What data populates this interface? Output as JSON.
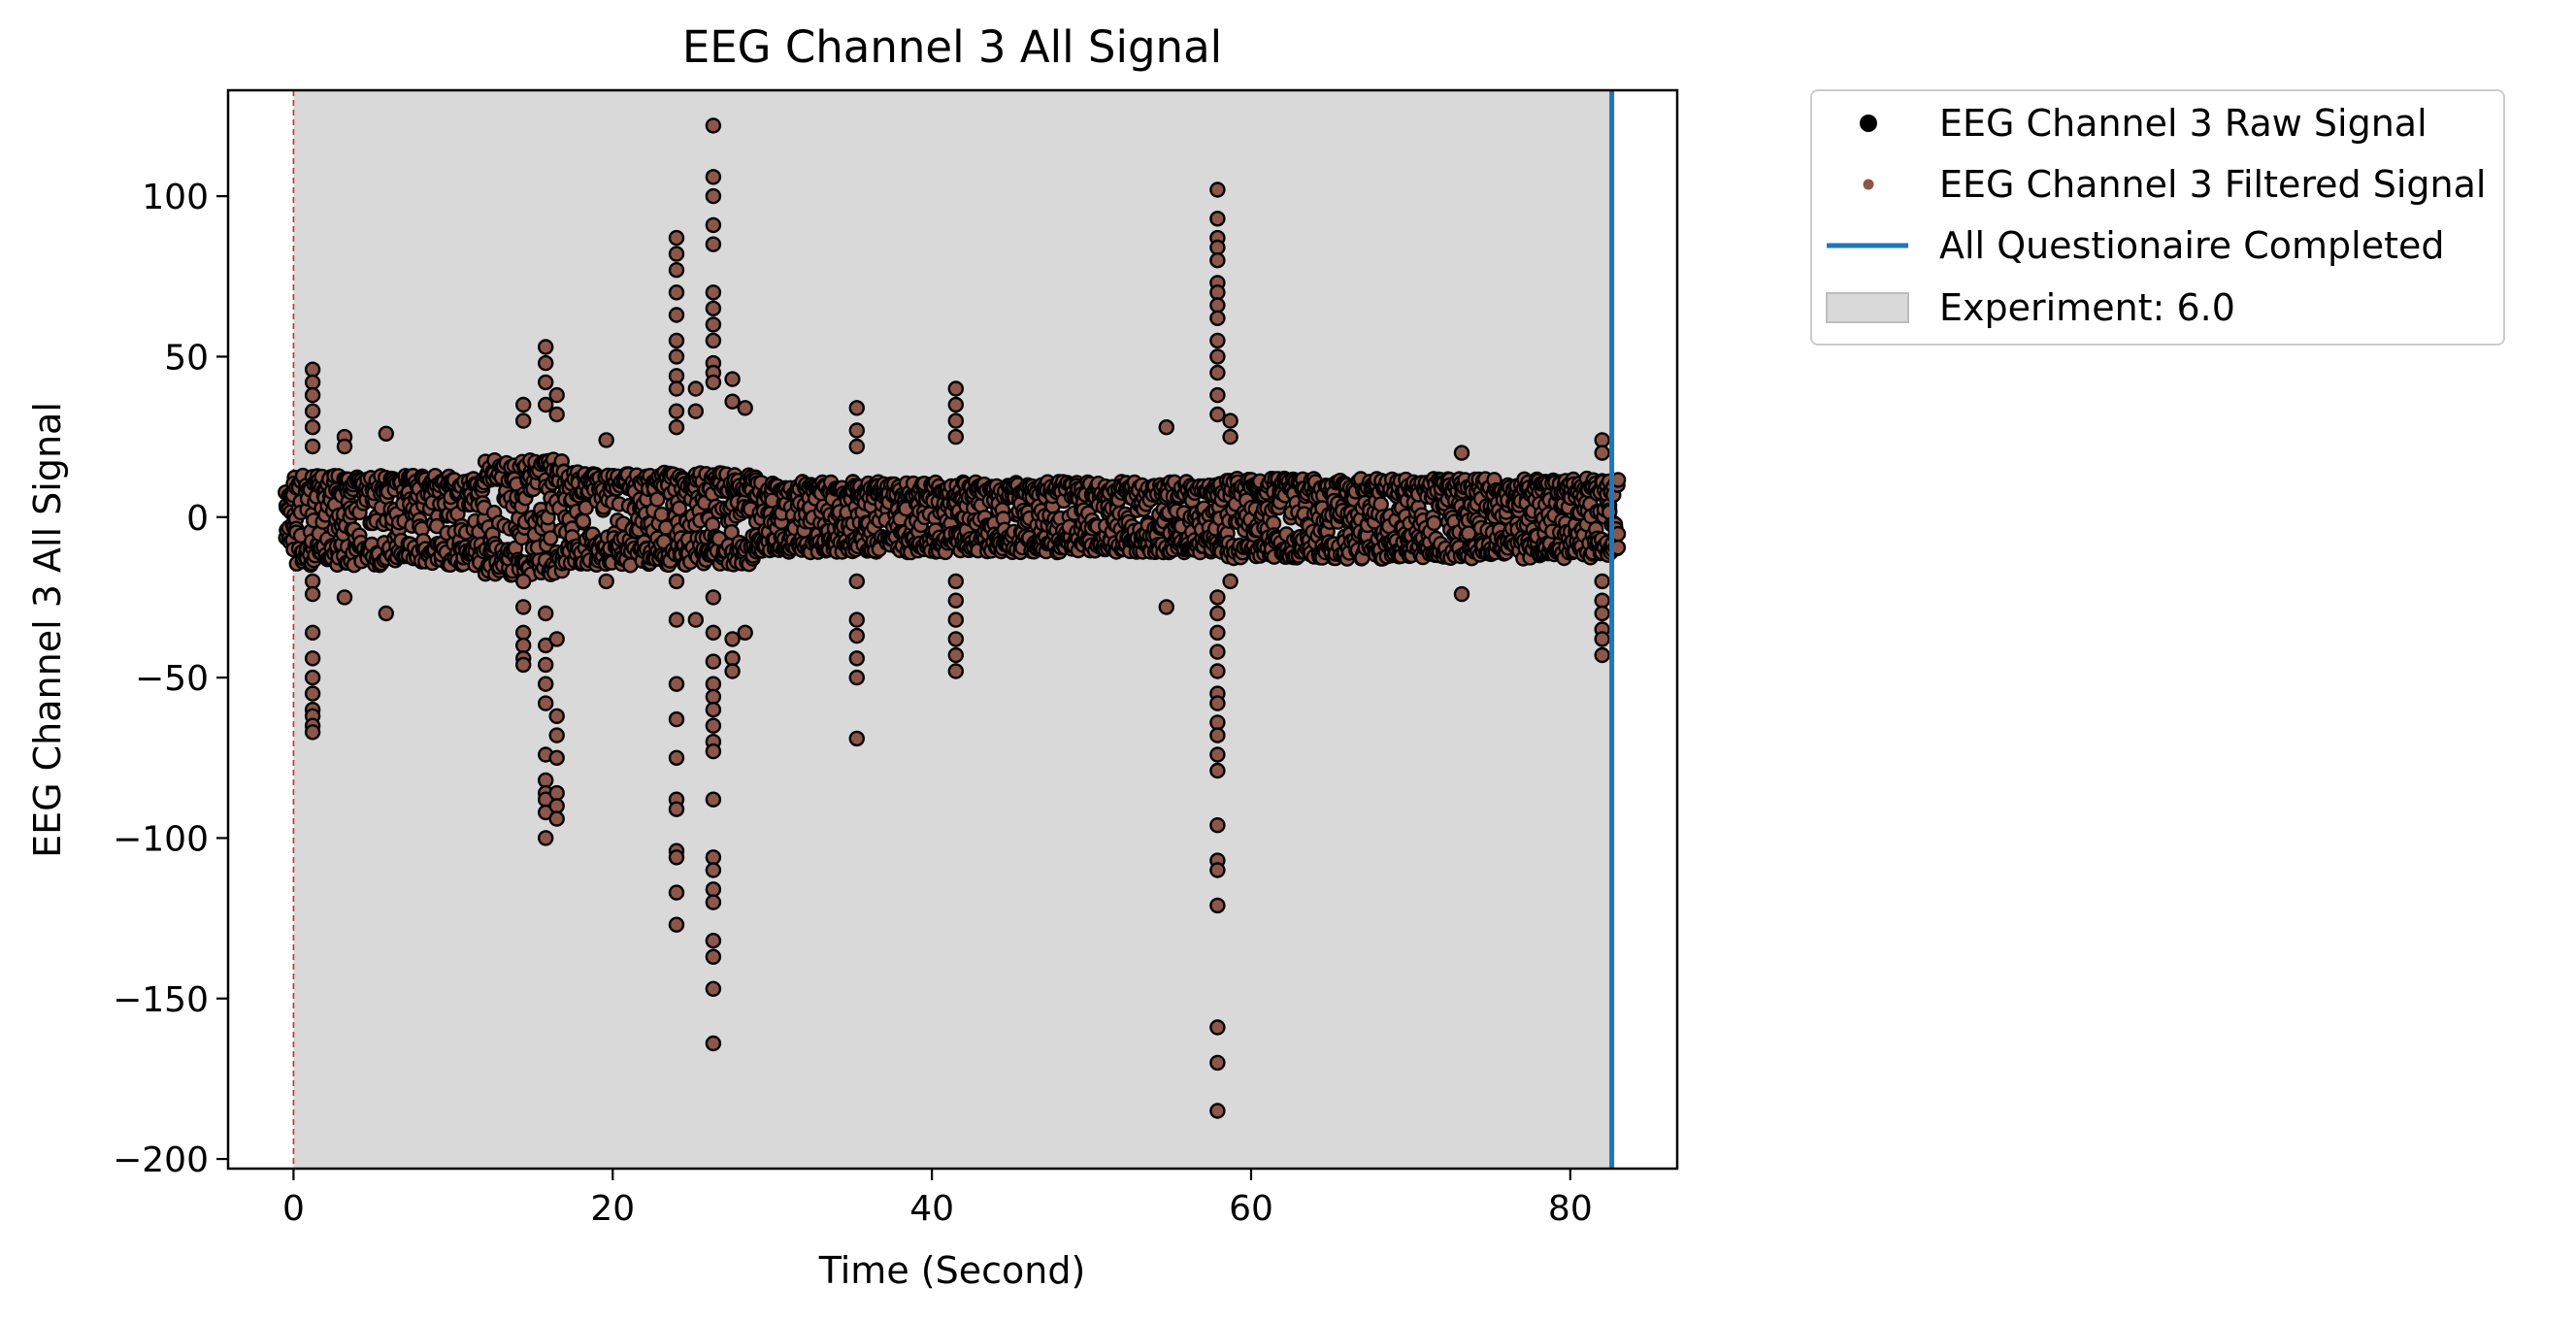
{
  "chart_data": {
    "type": "scatter",
    "title": "EEG Channel 3 All Signal",
    "xlabel": "Time (Second)",
    "ylabel": "EEG Channel 3 All Signal",
    "xlim": [
      -4.1,
      86.7
    ],
    "ylim": [
      -203,
      133
    ],
    "xticks": [
      0,
      20,
      40,
      60,
      80
    ],
    "xtick_labels": [
      "0",
      "20",
      "40",
      "60",
      "80"
    ],
    "yticks": [
      100,
      50,
      0,
      -50,
      -100,
      -150,
      -200
    ],
    "ytick_labels": [
      "100",
      "50",
      "0",
      "−50",
      "−100",
      "−150",
      "−200"
    ],
    "grid": false,
    "legend_position": "outside upper right",
    "colors": {
      "raw_marker_edge": "#000000",
      "filtered_marker": "#8c564b",
      "questionnaire_line": "#1f77b4",
      "experiment_span": "#d9d9d9",
      "start_line": "#d62728"
    },
    "legend": [
      {
        "label": "EEG Channel 3 Raw Signal",
        "kind": "dot",
        "color": "#000000"
      },
      {
        "label": "EEG Channel 3 Filtered Signal",
        "kind": "small-dot",
        "color": "#8c564b"
      },
      {
        "label": "All Questionaire Completed",
        "kind": "line",
        "color": "#1f77b4"
      },
      {
        "label": "Experiment: 6.0",
        "kind": "patch",
        "color": "#d9d9d9"
      }
    ],
    "experiment_span": {
      "x_start": 0.0,
      "x_end": 82.6
    },
    "start_line_x": 0.0,
    "questionnaire_completed_x": 82.6,
    "signal_time_range": [
      -0.5,
      83.0
    ],
    "baseline_envelope": [
      {
        "from": -0.5,
        "to": 0.0,
        "low": -10,
        "high": 8
      },
      {
        "from": 0.0,
        "to": 12.0,
        "low": -15,
        "high": 13
      },
      {
        "from": 12.0,
        "to": 17.0,
        "low": -18,
        "high": 18
      },
      {
        "from": 17.0,
        "to": 29.0,
        "low": -15,
        "high": 14
      },
      {
        "from": 29.0,
        "to": 58.0,
        "low": -11,
        "high": 11
      },
      {
        "from": 58.0,
        "to": 83.0,
        "low": -13,
        "high": 12
      }
    ],
    "spikes": [
      {
        "x": 1.2,
        "values": [
          46,
          42,
          38,
          33,
          28,
          22,
          -20,
          -24,
          -36,
          -44,
          -50,
          -55,
          -60,
          -62,
          -65,
          -67
        ]
      },
      {
        "x": 3.2,
        "values": [
          25,
          22,
          -25
        ]
      },
      {
        "x": 5.8,
        "values": [
          26,
          -30
        ]
      },
      {
        "x": 14.4,
        "values": [
          35,
          30,
          -20,
          -28,
          -36,
          -40,
          -44,
          -46
        ]
      },
      {
        "x": 15.8,
        "values": [
          53,
          48,
          42,
          35,
          -30,
          -40,
          -46,
          -52,
          -58,
          -74,
          -82,
          -86,
          -88,
          -92,
          -100
        ]
      },
      {
        "x": 16.5,
        "values": [
          38,
          32,
          -38,
          -62,
          -68,
          -75,
          -86,
          -90,
          -94
        ]
      },
      {
        "x": 19.6,
        "values": [
          24,
          -20
        ]
      },
      {
        "x": 24.0,
        "values": [
          87,
          82,
          77,
          70,
          63,
          55,
          50,
          44,
          40,
          33,
          28,
          -20,
          -32,
          -52,
          -63,
          -75,
          -88,
          -91,
          -104,
          -106,
          -117,
          -127
        ]
      },
      {
        "x": 25.2,
        "values": [
          40,
          33,
          -32
        ]
      },
      {
        "x": 26.3,
        "values": [
          122,
          106,
          100,
          91,
          85,
          70,
          65,
          60,
          55,
          48,
          45,
          42,
          -25,
          -36,
          -45,
          -52,
          -56,
          -60,
          -65,
          -70,
          -73,
          -88,
          -106,
          -110,
          -116,
          -120,
          -132,
          -137,
          -147,
          -164
        ]
      },
      {
        "x": 27.5,
        "values": [
          43,
          36,
          -38,
          -44,
          -48
        ]
      },
      {
        "x": 28.3,
        "values": [
          34,
          -36
        ]
      },
      {
        "x": 35.3,
        "values": [
          34,
          27,
          22,
          -20,
          -32,
          -37,
          -44,
          -50,
          -69
        ]
      },
      {
        "x": 41.5,
        "values": [
          40,
          35,
          30,
          25,
          -20,
          -26,
          -32,
          -38,
          -43,
          -48
        ]
      },
      {
        "x": 54.7,
        "values": [
          28,
          -28
        ]
      },
      {
        "x": 57.9,
        "values": [
          102,
          93,
          87,
          84,
          80,
          73,
          70,
          66,
          62,
          55,
          50,
          45,
          38,
          32,
          -25,
          -30,
          -36,
          -42,
          -48,
          -55,
          -58,
          -64,
          -68,
          -74,
          -79,
          -96,
          -107,
          -110,
          -121,
          -159,
          -170,
          -185
        ]
      },
      {
        "x": 58.7,
        "values": [
          30,
          25,
          -20
        ]
      },
      {
        "x": 73.2,
        "values": [
          20,
          -24
        ]
      },
      {
        "x": 82.0,
        "values": [
          24,
          20,
          -20,
          -26,
          -30,
          -35,
          -38,
          -43
        ]
      }
    ]
  }
}
